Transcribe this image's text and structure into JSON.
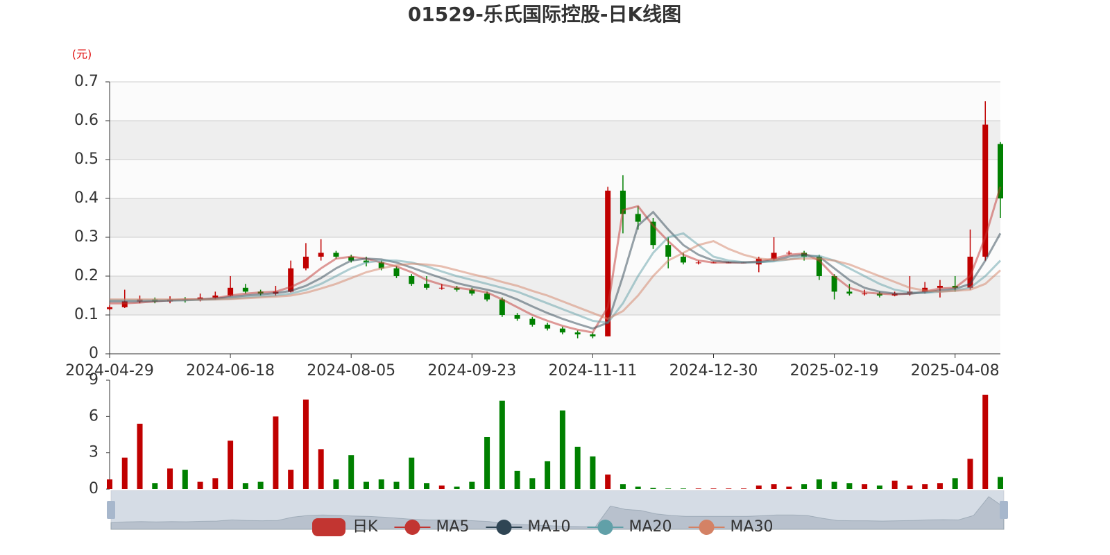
{
  "chart_data": [
    {
      "type": "candlestick",
      "title": "01529-乐氏国际控股-日K线图",
      "y_unit": "(元)",
      "categories": [
        "2024-04-29",
        null,
        null,
        null,
        null,
        null,
        null,
        null,
        "2024-06-18",
        null,
        null,
        null,
        null,
        null,
        null,
        null,
        "2024-08-05",
        null,
        null,
        null,
        null,
        null,
        null,
        null,
        "2024-09-23",
        null,
        null,
        null,
        null,
        null,
        null,
        null,
        "2024-11-11",
        null,
        null,
        null,
        null,
        null,
        null,
        null,
        "2024-12-30",
        null,
        null,
        null,
        null,
        null,
        null,
        null,
        "2025-02-19",
        null,
        null,
        null,
        null,
        null,
        null,
        null,
        "2025-04-08",
        null,
        null,
        null
      ],
      "ylim": [
        0,
        0.7
      ],
      "yticks": [
        0,
        0.1,
        0.2,
        0.3,
        0.4,
        0.5,
        0.6,
        0.7
      ],
      "split_area": true,
      "series": [
        {
          "name": "日K",
          "type": "candlestick",
          "color": "#c23531",
          "color_up": "#c00000",
          "color_down": "#008000",
          "values": [
            [
              0.115,
              0.12,
              0.112,
              0.125
            ],
            [
              0.12,
              0.135,
              0.118,
              0.165
            ],
            [
              0.135,
              0.14,
              0.13,
              0.15
            ],
            [
              0.14,
              0.135,
              0.13,
              0.145
            ],
            [
              0.135,
              0.14,
              0.13,
              0.148
            ],
            [
              0.14,
              0.138,
              0.132,
              0.146
            ],
            [
              0.138,
              0.145,
              0.135,
              0.155
            ],
            [
              0.145,
              0.15,
              0.14,
              0.16
            ],
            [
              0.15,
              0.17,
              0.148,
              0.2
            ],
            [
              0.17,
              0.16,
              0.155,
              0.18
            ],
            [
              0.16,
              0.155,
              0.15,
              0.165
            ],
            [
              0.155,
              0.16,
              0.15,
              0.175
            ],
            [
              0.16,
              0.22,
              0.158,
              0.24
            ],
            [
              0.22,
              0.25,
              0.215,
              0.285
            ],
            [
              0.25,
              0.26,
              0.24,
              0.295
            ],
            [
              0.26,
              0.25,
              0.245,
              0.265
            ],
            [
              0.25,
              0.24,
              0.235,
              0.255
            ],
            [
              0.24,
              0.235,
              0.225,
              0.25
            ],
            [
              0.235,
              0.22,
              0.215,
              0.24
            ],
            [
              0.22,
              0.2,
              0.195,
              0.225
            ],
            [
              0.2,
              0.18,
              0.175,
              0.205
            ],
            [
              0.18,
              0.17,
              0.165,
              0.2
            ],
            [
              0.17,
              0.17,
              0.165,
              0.18
            ],
            [
              0.17,
              0.165,
              0.16,
              0.175
            ],
            [
              0.165,
              0.155,
              0.15,
              0.17
            ],
            [
              0.155,
              0.14,
              0.135,
              0.16
            ],
            [
              0.14,
              0.1,
              0.095,
              0.145
            ],
            [
              0.1,
              0.09,
              0.085,
              0.105
            ],
            [
              0.09,
              0.075,
              0.07,
              0.095
            ],
            [
              0.075,
              0.065,
              0.06,
              0.08
            ],
            [
              0.065,
              0.055,
              0.05,
              0.07
            ],
            [
              0.055,
              0.05,
              0.04,
              0.06
            ],
            [
              0.05,
              0.045,
              0.04,
              0.055
            ],
            [
              0.045,
              0.42,
              0.045,
              0.43
            ],
            [
              0.42,
              0.36,
              0.31,
              0.46
            ],
            [
              0.36,
              0.34,
              0.32,
              0.38
            ],
            [
              0.34,
              0.28,
              0.27,
              0.35
            ],
            [
              0.28,
              0.25,
              0.22,
              0.3
            ],
            [
              0.25,
              0.235,
              0.23,
              0.26
            ],
            [
              0.235,
              0.235,
              0.23,
              0.24
            ],
            [
              0.235,
              0.235,
              0.233,
              0.237
            ],
            [
              0.235,
              0.235,
              0.233,
              0.237
            ],
            [
              0.235,
              0.235,
              0.233,
              0.237
            ],
            [
              0.23,
              0.245,
              0.21,
              0.25
            ],
            [
              0.245,
              0.26,
              0.24,
              0.3
            ],
            [
              0.26,
              0.26,
              0.255,
              0.265
            ],
            [
              0.26,
              0.25,
              0.24,
              0.265
            ],
            [
              0.25,
              0.2,
              0.19,
              0.255
            ],
            [
              0.2,
              0.16,
              0.14,
              0.205
            ],
            [
              0.16,
              0.155,
              0.15,
              0.18
            ],
            [
              0.155,
              0.155,
              0.15,
              0.165
            ],
            [
              0.155,
              0.15,
              0.145,
              0.16
            ],
            [
              0.15,
              0.155,
              0.148,
              0.16
            ],
            [
              0.155,
              0.16,
              0.15,
              0.2
            ],
            [
              0.16,
              0.17,
              0.155,
              0.185
            ],
            [
              0.17,
              0.175,
              0.145,
              0.19
            ],
            [
              0.175,
              0.17,
              0.16,
              0.2
            ],
            [
              0.17,
              0.25,
              0.165,
              0.32
            ],
            [
              0.25,
              0.59,
              0.24,
              0.65
            ],
            [
              0.54,
              0.4,
              0.35,
              0.545
            ]
          ]
        },
        {
          "name": "MA5",
          "type": "line",
          "color": "#c23531",
          "values": [
            0.13,
            0.13,
            0.132,
            0.135,
            0.138,
            0.14,
            0.14,
            0.143,
            0.15,
            0.155,
            0.158,
            0.16,
            0.172,
            0.19,
            0.22,
            0.245,
            0.25,
            0.245,
            0.235,
            0.225,
            0.21,
            0.19,
            0.178,
            0.17,
            0.165,
            0.158,
            0.14,
            0.12,
            0.1,
            0.085,
            0.072,
            0.062,
            0.055,
            0.12,
            0.37,
            0.38,
            0.33,
            0.29,
            0.255,
            0.24,
            0.235,
            0.235,
            0.235,
            0.238,
            0.245,
            0.255,
            0.258,
            0.24,
            0.2,
            0.17,
            0.158,
            0.155,
            0.153,
            0.155,
            0.16,
            0.168,
            0.17,
            0.2,
            0.3,
            0.43
          ]
        },
        {
          "name": "MA10",
          "type": "line",
          "color": "#2f4554",
          "values": [
            0.135,
            0.135,
            0.135,
            0.136,
            0.137,
            0.138,
            0.14,
            0.142,
            0.146,
            0.15,
            0.153,
            0.156,
            0.162,
            0.175,
            0.195,
            0.22,
            0.24,
            0.245,
            0.243,
            0.235,
            0.222,
            0.208,
            0.195,
            0.182,
            0.173,
            0.165,
            0.155,
            0.14,
            0.122,
            0.105,
            0.09,
            0.077,
            0.065,
            0.08,
            0.2,
            0.33,
            0.365,
            0.32,
            0.28,
            0.255,
            0.24,
            0.236,
            0.235,
            0.236,
            0.24,
            0.25,
            0.255,
            0.25,
            0.22,
            0.19,
            0.17,
            0.16,
            0.155,
            0.155,
            0.158,
            0.163,
            0.167,
            0.18,
            0.24,
            0.31
          ]
        },
        {
          "name": "MA20",
          "type": "line",
          "color": "#61a0a8",
          "values": [
            0.138,
            0.138,
            0.138,
            0.138,
            0.138,
            0.138,
            0.139,
            0.14,
            0.142,
            0.145,
            0.148,
            0.15,
            0.155,
            0.165,
            0.18,
            0.2,
            0.22,
            0.235,
            0.24,
            0.24,
            0.235,
            0.225,
            0.212,
            0.2,
            0.19,
            0.18,
            0.17,
            0.16,
            0.145,
            0.13,
            0.115,
            0.1,
            0.085,
            0.08,
            0.13,
            0.2,
            0.26,
            0.3,
            0.31,
            0.28,
            0.25,
            0.24,
            0.236,
            0.236,
            0.238,
            0.243,
            0.25,
            0.252,
            0.24,
            0.22,
            0.2,
            0.18,
            0.165,
            0.158,
            0.157,
            0.16,
            0.163,
            0.17,
            0.2,
            0.24
          ]
        },
        {
          "name": "MA30",
          "type": "line",
          "color": "#d48265",
          "values": [
            0.14,
            0.14,
            0.14,
            0.14,
            0.14,
            0.14,
            0.14,
            0.14,
            0.141,
            0.143,
            0.145,
            0.147,
            0.15,
            0.157,
            0.168,
            0.18,
            0.195,
            0.21,
            0.22,
            0.228,
            0.232,
            0.23,
            0.225,
            0.215,
            0.205,
            0.196,
            0.185,
            0.175,
            0.162,
            0.15,
            0.135,
            0.12,
            0.105,
            0.09,
            0.11,
            0.15,
            0.2,
            0.24,
            0.26,
            0.28,
            0.29,
            0.27,
            0.255,
            0.245,
            0.242,
            0.243,
            0.245,
            0.245,
            0.24,
            0.23,
            0.215,
            0.2,
            0.185,
            0.17,
            0.163,
            0.16,
            0.162,
            0.165,
            0.18,
            0.215
          ]
        }
      ]
    },
    {
      "type": "bar",
      "ylim": [
        0,
        9
      ],
      "yticks": [
        0,
        3,
        6,
        9
      ],
      "values": [
        0.8,
        2.6,
        5.4,
        0.5,
        1.7,
        1.6,
        0.6,
        0.9,
        4.0,
        0.5,
        0.6,
        6.0,
        1.6,
        7.4,
        3.3,
        0.8,
        2.8,
        0.6,
        0.8,
        0.6,
        2.6,
        0.5,
        0.3,
        0.2,
        0.6,
        4.3,
        7.3,
        1.5,
        0.9,
        2.3,
        6.5,
        3.5,
        2.7,
        1.2,
        0.4,
        0.2,
        0.1,
        0.05,
        0.05,
        0.05,
        0.05,
        0.05,
        0.05,
        0.3,
        0.4,
        0.2,
        0.4,
        0.8,
        0.6,
        0.5,
        0.4,
        0.3,
        0.7,
        0.3,
        0.4,
        0.5,
        0.9,
        2.5,
        7.8,
        1.0
      ]
    }
  ]
}
